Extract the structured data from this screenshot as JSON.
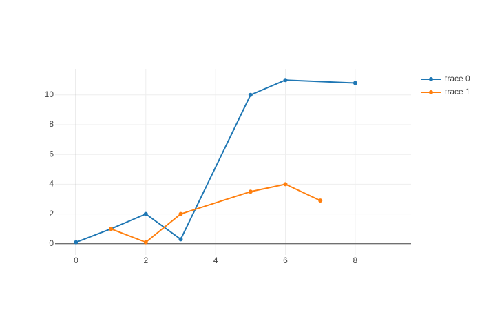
{
  "chart_data": {
    "type": "line",
    "series": [
      {
        "name": "trace 0",
        "color": "#1f77b4",
        "x": [
          0,
          1,
          2,
          3,
          5,
          6,
          8
        ],
        "values": [
          0.1,
          1,
          2,
          0.3,
          10,
          11,
          10.8
        ]
      },
      {
        "name": "trace 1",
        "color": "#ff7f0e",
        "x": [
          1,
          2,
          3,
          5,
          6,
          7
        ],
        "values": [
          1,
          0.1,
          2,
          3.5,
          4,
          2.9
        ]
      }
    ],
    "xlim": [
      -0.6,
      9.6
    ],
    "xticks": [
      0,
      2,
      4,
      6,
      8
    ],
    "ylim": [
      -0.75,
      11.75
    ],
    "yticks": [
      0,
      2,
      4,
      6,
      8,
      10
    ],
    "grid": true,
    "zeroline": true,
    "legend": "right"
  }
}
